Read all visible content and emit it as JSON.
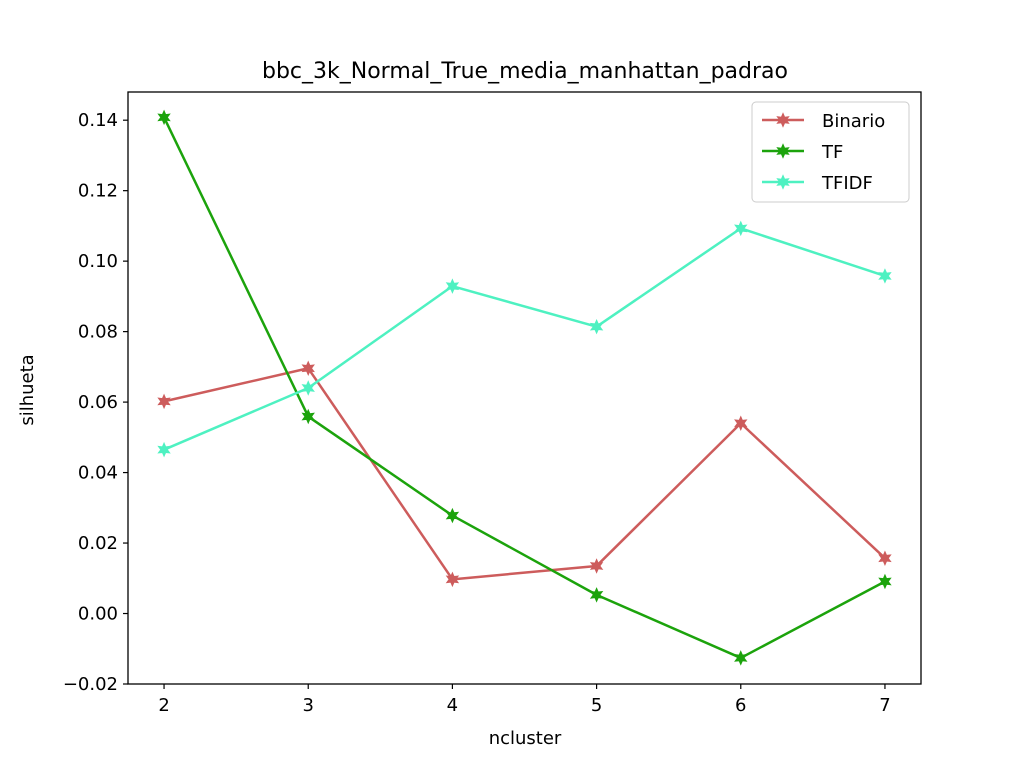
{
  "chart_data": {
    "type": "line",
    "title": "bbc_3k_Normal_True_media_manhattan_padrao",
    "xlabel": "ncluster",
    "ylabel": "silhueta",
    "x": [
      2,
      3,
      4,
      5,
      6,
      7
    ],
    "xlim": [
      1.75,
      7.25
    ],
    "ylim": [
      -0.02,
      0.148
    ],
    "xticks": [
      2,
      3,
      4,
      5,
      6,
      7
    ],
    "yticks": [
      -0.02,
      0.0,
      0.02,
      0.04,
      0.06,
      0.08,
      0.1,
      0.12,
      0.14
    ],
    "xtick_labels": [
      "2",
      "3",
      "4",
      "5",
      "6",
      "7"
    ],
    "ytick_labels": [
      "−0.02",
      "0.00",
      "0.02",
      "0.04",
      "0.06",
      "0.08",
      "0.10",
      "0.12",
      "0.14"
    ],
    "grid": false,
    "legend_position": "top-right",
    "series": [
      {
        "name": "Binario",
        "color": "#cd5c5c",
        "values": [
          0.0602,
          0.0696,
          0.0097,
          0.0135,
          0.054,
          0.0157
        ]
      },
      {
        "name": "TF",
        "color": "#1ca30c",
        "values": [
          0.1408,
          0.0559,
          0.0278,
          0.0053,
          -0.0126,
          0.0091
        ]
      },
      {
        "name": "TFIDF",
        "color": "#4ef1c1",
        "values": [
          0.0465,
          0.064,
          0.0929,
          0.0814,
          0.1093,
          0.0958
        ]
      }
    ]
  }
}
